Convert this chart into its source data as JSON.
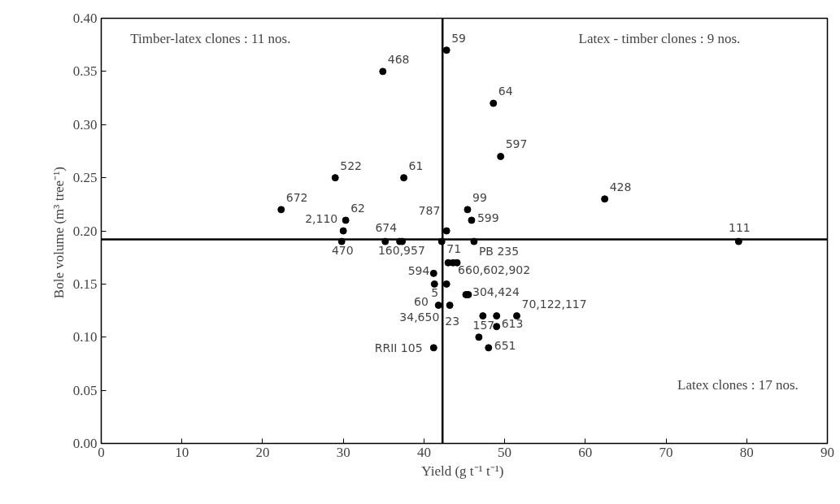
{
  "chart_data": {
    "type": "scatter",
    "xlabel": "Yield  (g t⁻¹ t⁻¹)",
    "ylabel": "Bole volume  (m³ tree⁻¹)",
    "xlim": [
      0,
      90
    ],
    "xticks": [
      0,
      10,
      20,
      30,
      40,
      50,
      60,
      70,
      80,
      90
    ],
    "ylim": [
      0,
      0.4
    ],
    "yticks": [
      {
        "value": 0,
        "label": "0.00"
      },
      {
        "value": 0.05,
        "label": "0.05"
      },
      {
        "value": 0.1,
        "label": "0.10"
      },
      {
        "value": 0.15,
        "label": "0.15"
      },
      {
        "value": 0.2,
        "label": "0.20"
      },
      {
        "value": 0.25,
        "label": "0.25"
      },
      {
        "value": 0.3,
        "label": "0.30"
      },
      {
        "value": 0.35,
        "label": "0.35"
      },
      {
        "value": 0.4,
        "label": "0.40"
      }
    ],
    "grid": false,
    "marker": "circle",
    "series": [
      {
        "color": "#000000",
        "x": [
          42.8,
          34.9,
          48.6,
          49.5,
          29.0,
          37.5,
          22.3,
          62.4,
          79.0,
          45.4,
          45.9,
          30.3,
          30.0,
          29.8,
          35.2,
          37.0,
          37.3,
          42.8,
          42.2,
          46.2,
          43.0,
          43.6,
          44.1,
          41.2,
          41.3,
          42.8,
          45.2,
          45.5,
          41.8,
          43.2,
          47.3,
          49.0,
          51.5,
          49.0,
          46.8,
          48.0,
          41.2
        ],
        "values": [
          0.37,
          0.35,
          0.32,
          0.27,
          0.25,
          0.25,
          0.22,
          0.23,
          0.19,
          0.22,
          0.21,
          0.21,
          0.2,
          0.19,
          0.19,
          0.19,
          0.19,
          0.2,
          0.19,
          0.19,
          0.17,
          0.17,
          0.17,
          0.16,
          0.15,
          0.15,
          0.14,
          0.14,
          0.13,
          0.13,
          0.12,
          0.12,
          0.12,
          0.11,
          0.1,
          0.09,
          0.09
        ]
      }
    ],
    "ref_lines": [
      {
        "axis": "x",
        "value": 42.3,
        "color": "#000000"
      },
      {
        "axis": "y",
        "value": 0.192,
        "color": "#000000"
      }
    ],
    "annotations": [
      "Timber-latex clones : 11 nos.",
      "Latex - timber clones : 9 nos.",
      "Latex clones : 17 nos.",
      {
        "text": "59",
        "x": 42.8,
        "y": 0.37
      },
      {
        "text": "468",
        "x": 34.9,
        "y": 0.35
      },
      {
        "text": "64",
        "x": 48.6,
        "y": 0.32
      },
      {
        "text": "597",
        "x": 49.5,
        "y": 0.27
      },
      {
        "text": "522",
        "x": 29.0,
        "y": 0.25
      },
      {
        "text": "61",
        "x": 37.5,
        "y": 0.25
      },
      {
        "text": "672",
        "x": 22.3,
        "y": 0.22
      },
      {
        "text": "428",
        "x": 62.4,
        "y": 0.23
      },
      {
        "text": "111",
        "x": 79.0,
        "y": 0.19
      },
      {
        "text": "99",
        "x": 45.4,
        "y": 0.22
      },
      {
        "text": "599",
        "x": 45.9,
        "y": 0.21
      },
      {
        "text": "62",
        "x": 30.3,
        "y": 0.21
      },
      {
        "text": "2,110",
        "x": 30.0,
        "y": 0.2
      },
      {
        "text": "470",
        "x": 29.8,
        "y": 0.19
      },
      {
        "text": "674",
        "x": 35.2,
        "y": 0.19
      },
      {
        "text": "160,957",
        "x": 37.2,
        "y": 0.19
      },
      {
        "text": "787",
        "x": 42.8,
        "y": 0.2
      },
      {
        "text": "71",
        "x": 42.2,
        "y": 0.19
      },
      {
        "text": "PB 235",
        "x": 46.2,
        "y": 0.19
      },
      {
        "text": "660,602,902",
        "x": 43.6,
        "y": 0.17
      },
      {
        "text": "594",
        "x": 41.2,
        "y": 0.16
      },
      {
        "text": "5",
        "x": 41.3,
        "y": 0.15
      },
      {
        "text": "60",
        "x": 42.8,
        "y": 0.15
      },
      {
        "text": "304,424",
        "x": 45.3,
        "y": 0.14
      },
      {
        "text": "23",
        "x": 41.8,
        "y": 0.13
      },
      {
        "text": "34,650",
        "x": 43.2,
        "y": 0.13
      },
      {
        "text": "157",
        "x": 47.3,
        "y": 0.12
      },
      {
        "text": "613",
        "x": 49.0,
        "y": 0.12
      },
      {
        "text": "70,122,117",
        "x": 51.5,
        "y": 0.12
      },
      {
        "text": "651",
        "x": 48.0,
        "y": 0.09
      },
      {
        "text": "RRII 105",
        "x": 41.2,
        "y": 0.09
      }
    ]
  }
}
